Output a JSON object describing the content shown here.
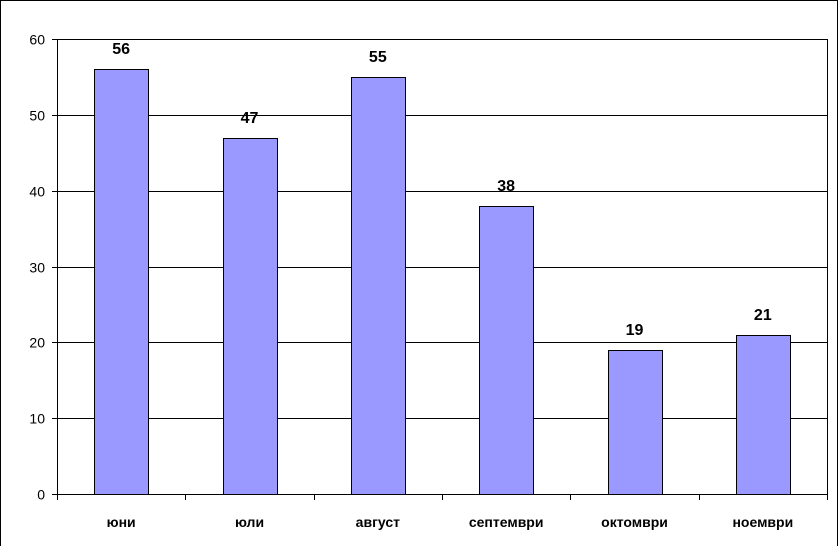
{
  "chart_data": {
    "type": "bar",
    "title": "",
    "xlabel": "",
    "ylabel": "",
    "categories": [
      "юни",
      "юли",
      "август",
      "септември",
      "октомври",
      "ноември"
    ],
    "values": [
      56,
      47,
      55,
      38,
      19,
      21
    ],
    "ylim": [
      0,
      60
    ],
    "yticks": [
      0,
      10,
      20,
      30,
      40,
      50,
      60
    ],
    "grid": true,
    "legend": "none",
    "bar_color": "#9999FF",
    "bar_border_color": "#000000"
  }
}
